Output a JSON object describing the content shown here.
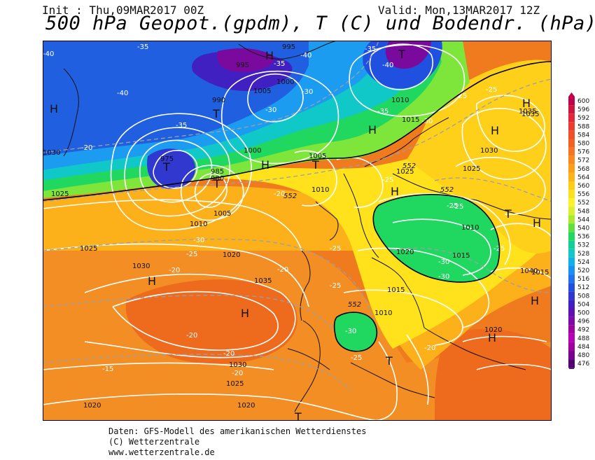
{
  "header": {
    "init": "Init : Thu,09MAR2017 00Z",
    "valid": "Valid: Mon,13MAR2017 12Z",
    "title": "500 hPa Geopot.(gpdm), T (C) und Bodendr. (hPa)"
  },
  "footer": {
    "line1": "Daten: GFS-Modell des amerikanischen Wetterdienstes",
    "line2": "(C) Wetterzentrale",
    "line3": "www.wetterzentrale.de"
  },
  "legend": {
    "levels": [
      "600",
      "596",
      "592",
      "588",
      "584",
      "580",
      "576",
      "572",
      "568",
      "564",
      "560",
      "556",
      "552",
      "548",
      "544",
      "540",
      "536",
      "532",
      "528",
      "524",
      "520",
      "516",
      "512",
      "508",
      "504",
      "500",
      "496",
      "492",
      "488",
      "484",
      "480",
      "476"
    ],
    "colors": [
      "#c0004a",
      "#d01440",
      "#e02838",
      "#ec3c30",
      "#f05028",
      "#f46024",
      "#f87420",
      "#fa8a1c",
      "#fc9e18",
      "#fdb418",
      "#ffcc18",
      "#ffe020",
      "#fff028",
      "#d8f030",
      "#a8ea30",
      "#60e040",
      "#20d860",
      "#10d098",
      "#10c8c8",
      "#10b0e8",
      "#1890f8",
      "#2070f0",
      "#2050e0",
      "#3038d0",
      "#4020c0",
      "#6010b0",
      "#8008a8",
      "#a000a0",
      "#b800b8",
      "#a000a0",
      "#7a0090",
      "#500070"
    ]
  },
  "map": {
    "pressure_centers": [
      {
        "type": "H",
        "label": "H"
      },
      {
        "type": "H",
        "label": "H"
      },
      {
        "type": "H",
        "label": "H"
      },
      {
        "type": "H",
        "label": "H"
      },
      {
        "type": "H",
        "label": "H"
      },
      {
        "type": "H",
        "label": "H"
      },
      {
        "type": "H",
        "label": "H"
      },
      {
        "type": "H",
        "label": "H"
      },
      {
        "type": "H",
        "label": "H"
      },
      {
        "type": "H",
        "label": "H"
      },
      {
        "type": "H",
        "label": "H"
      },
      {
        "type": "H",
        "label": "H"
      },
      {
        "type": "T",
        "label": "T"
      },
      {
        "type": "T",
        "label": "T"
      },
      {
        "type": "T",
        "label": "T"
      },
      {
        "type": "T",
        "label": "T"
      },
      {
        "type": "T",
        "label": "T"
      },
      {
        "type": "T",
        "label": "T"
      },
      {
        "type": "T",
        "label": "T"
      },
      {
        "type": "T",
        "label": "T"
      }
    ],
    "isobar_labels": [
      "995",
      "995",
      "1005",
      "1000",
      "990",
      "1010",
      "1015",
      "1005",
      "1010",
      "1025",
      "1030",
      "1035",
      "1025",
      "1010",
      "1020",
      "1015",
      "1025",
      "1030",
      "1035",
      "1020",
      "1015",
      "1010",
      "1020",
      "1015",
      "1030",
      "1025",
      "1020",
      "1020",
      "1000",
      "1005",
      "1010",
      "985",
      "980",
      "975",
      "1025",
      "1030",
      "1035",
      "1040"
    ],
    "temperature_labels": [
      "-35",
      "-40",
      "-35",
      "-40",
      "-35",
      "-40",
      "-35",
      "-40",
      "-30",
      "-35",
      "-30",
      "-25",
      "-30",
      "-25",
      "-20",
      "-25",
      "-20",
      "-30",
      "-25",
      "-20",
      "-25",
      "-30",
      "-25",
      "-20",
      "-15",
      "-20",
      "-25",
      "-30",
      "-20",
      "-25",
      "-20",
      "-25",
      "-30",
      "-25",
      "-20"
    ],
    "geopot_labels": [
      "552",
      "552",
      "552",
      "552"
    ]
  }
}
